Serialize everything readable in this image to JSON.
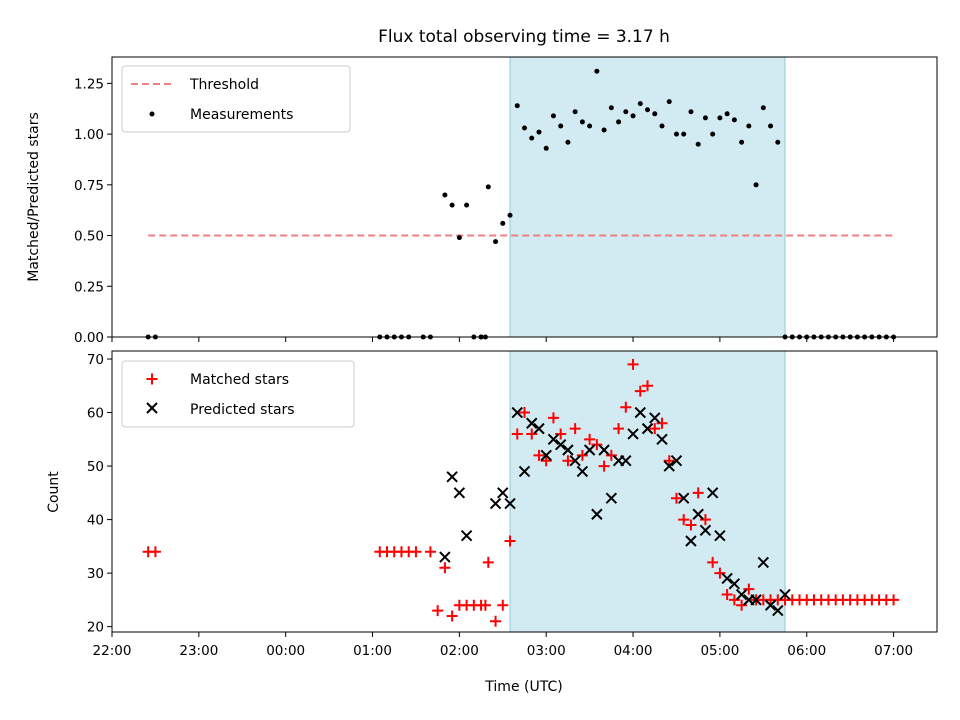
{
  "chart_data": [
    {
      "type": "scatter",
      "title": "Flux total observing time = 3.17 h",
      "ylabel": "Matched/Predicted stars",
      "xlabel": "",
      "ylim": [
        0,
        1.38
      ],
      "y_ticks": [
        "0.00",
        "0.25",
        "0.50",
        "0.75",
        "1.00",
        "1.25"
      ],
      "x_range": [
        "22:00",
        "07:30"
      ],
      "legend_position": "top-left",
      "highlight_span": [
        "02:35",
        "05:45"
      ],
      "highlight_color": "#add8e6",
      "series": [
        {
          "name": "Threshold",
          "kind": "dashed-line",
          "color": "#f08080",
          "x": [
            "22:25",
            "07:00"
          ],
          "y": [
            0.5,
            0.5
          ]
        },
        {
          "name": "Measurements",
          "kind": "dots",
          "color": "#000000",
          "x": [
            "22:25",
            "22:30",
            "01:05",
            "01:10",
            "01:15",
            "01:20",
            "01:25",
            "01:35",
            "01:50",
            "01:55",
            "02:00",
            "02:05",
            "02:10",
            "02:15",
            "02:20",
            "02:25",
            "02:30",
            "02:35",
            "02:40",
            "02:45",
            "02:50",
            "02:55",
            "03:00",
            "03:05",
            "03:10",
            "03:15",
            "03:20",
            "03:25",
            "03:30",
            "03:35",
            "03:40",
            "03:45",
            "03:50",
            "03:55",
            "04:00",
            "04:05",
            "04:10",
            "04:15",
            "04:20",
            "04:25",
            "04:30",
            "04:35",
            "04:40",
            "04:45",
            "04:50",
            "04:55",
            "05:00",
            "05:05",
            "05:10",
            "05:15",
            "05:20",
            "05:25",
            "05:30",
            "05:35",
            "05:40",
            "05:45",
            "05:50",
            "05:55",
            "06:00",
            "06:05",
            "06:10",
            "06:15",
            "06:20",
            "06:25",
            "06:30",
            "06:35",
            "06:40",
            "06:45",
            "06:50",
            "06:55",
            "07:00",
            "01:40",
            "02:15",
            "02:18"
          ],
          "y": [
            0,
            0,
            0,
            0,
            0,
            0,
            0,
            0,
            0.7,
            0.65,
            0.49,
            0.65,
            0,
            0,
            0.74,
            0.47,
            0.56,
            0.6,
            1.14,
            1.03,
            0.98,
            1.01,
            0.93,
            1.09,
            1.04,
            0.96,
            1.11,
            1.06,
            1.04,
            1.31,
            1.02,
            1.13,
            1.06,
            1.11,
            1.09,
            1.15,
            1.12,
            1.1,
            1.04,
            1.16,
            1.0,
            1.0,
            1.11,
            0.95,
            1.08,
            1.0,
            1.08,
            1.1,
            1.07,
            0.96,
            1.04,
            0.75,
            1.13,
            1.04,
            0.96,
            0,
            0,
            0,
            0,
            0,
            0,
            0,
            0,
            0,
            0,
            0,
            0,
            0,
            0,
            0,
            0,
            0,
            0,
            0
          ]
        }
      ]
    },
    {
      "type": "scatter",
      "title": "",
      "ylabel": "Count",
      "xlabel": "Time (UTC)",
      "ylim": [
        19,
        71.5
      ],
      "y_ticks": [
        "20",
        "30",
        "40",
        "50",
        "60",
        "70"
      ],
      "x_ticks": [
        "22:00",
        "23:00",
        "00:00",
        "01:00",
        "02:00",
        "03:00",
        "04:00",
        "05:00",
        "06:00",
        "07:00"
      ],
      "x_range": [
        "22:00",
        "07:30"
      ],
      "legend_position": "top-left",
      "highlight_span": [
        "02:35",
        "05:45"
      ],
      "highlight_color": "#add8e6",
      "series": [
        {
          "name": "Matched stars",
          "kind": "plus",
          "color": "#ff0000",
          "x": [
            "22:25",
            "22:30",
            "01:05",
            "01:10",
            "01:15",
            "01:20",
            "01:25",
            "01:30",
            "01:40",
            "01:45",
            "01:50",
            "01:55",
            "02:00",
            "02:05",
            "02:10",
            "02:15",
            "02:20",
            "02:25",
            "02:30",
            "02:35",
            "02:40",
            "02:45",
            "02:50",
            "02:55",
            "03:00",
            "03:05",
            "03:10",
            "03:15",
            "03:20",
            "03:25",
            "03:30",
            "03:35",
            "03:40",
            "03:45",
            "03:50",
            "03:55",
            "04:00",
            "04:05",
            "04:10",
            "04:15",
            "04:20",
            "04:25",
            "04:30",
            "04:35",
            "04:40",
            "04:45",
            "04:50",
            "04:55",
            "05:00",
            "05:05",
            "05:10",
            "05:15",
            "05:20",
            "05:25",
            "05:30",
            "05:35",
            "05:40",
            "05:45",
            "05:50",
            "05:55",
            "06:00",
            "06:05",
            "06:10",
            "06:15",
            "06:20",
            "06:25",
            "06:30",
            "06:35",
            "06:40",
            "06:45",
            "06:50",
            "06:55",
            "07:00",
            "02:18"
          ],
          "y": [
            34,
            34,
            34,
            34,
            34,
            34,
            34,
            34,
            34,
            23,
            31,
            22,
            24,
            24,
            24,
            24,
            32,
            21,
            24,
            36,
            56,
            60,
            56,
            52,
            51,
            59,
            56,
            51,
            57,
            52,
            55,
            54,
            50,
            52,
            57,
            61,
            69,
            64,
            65,
            57,
            58,
            51,
            44,
            40,
            39,
            45,
            40,
            32,
            30,
            26,
            25,
            24,
            27,
            25,
            25,
            25,
            25,
            25,
            25,
            25,
            25,
            25,
            25,
            25,
            25,
            25,
            25,
            25,
            25,
            25,
            25,
            25,
            25,
            24
          ]
        },
        {
          "name": "Predicted stars",
          "kind": "cross",
          "color": "#000000",
          "x": [
            "01:50",
            "01:55",
            "02:00",
            "02:05",
            "02:25",
            "02:30",
            "02:35",
            "02:40",
            "02:45",
            "02:50",
            "02:55",
            "03:00",
            "03:05",
            "03:10",
            "03:15",
            "03:20",
            "03:25",
            "03:30",
            "03:35",
            "03:40",
            "03:45",
            "03:50",
            "03:55",
            "04:00",
            "04:05",
            "04:10",
            "04:15",
            "04:20",
            "04:25",
            "04:30",
            "04:35",
            "04:40",
            "04:45",
            "04:50",
            "04:55",
            "05:00",
            "05:05",
            "05:10",
            "05:15",
            "05:20",
            "05:25",
            "05:30",
            "05:35",
            "05:40",
            "05:45"
          ],
          "y": [
            33,
            48,
            45,
            37,
            43,
            45,
            43,
            60,
            49,
            58,
            57,
            52,
            55,
            54,
            53,
            51,
            49,
            53,
            41,
            53,
            44,
            51,
            51,
            56,
            60,
            57,
            59,
            55,
            50,
            51,
            44,
            36,
            41,
            38,
            45,
            37,
            29,
            28,
            26,
            25,
            25,
            32,
            24,
            23,
            26
          ]
        }
      ]
    }
  ]
}
